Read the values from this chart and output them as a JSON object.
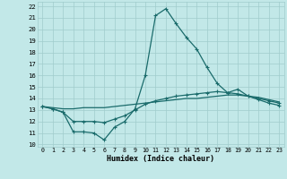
{
  "xlabel": "Humidex (Indice chaleur)",
  "bg_color": "#c2e8e8",
  "grid_color": "#a0cccc",
  "line_color": "#1a6b6b",
  "x": [
    0,
    1,
    2,
    3,
    4,
    5,
    6,
    7,
    8,
    9,
    10,
    11,
    12,
    13,
    14,
    15,
    16,
    17,
    18,
    19,
    20,
    21,
    22,
    23
  ],
  "line1": [
    13.3,
    13.1,
    12.8,
    11.1,
    11.1,
    11.0,
    10.4,
    11.5,
    12.0,
    13.1,
    16.0,
    21.2,
    21.8,
    20.5,
    19.3,
    18.3,
    16.7,
    15.3,
    14.5,
    14.8,
    14.2,
    14.0,
    13.8,
    13.6
  ],
  "line2": [
    13.3,
    13.2,
    13.1,
    13.1,
    13.2,
    13.2,
    13.2,
    13.3,
    13.4,
    13.5,
    13.6,
    13.7,
    13.8,
    13.9,
    14.0,
    14.0,
    14.1,
    14.2,
    14.3,
    14.3,
    14.2,
    14.1,
    13.9,
    13.7
  ],
  "line3": [
    13.3,
    13.1,
    12.8,
    12.0,
    12.0,
    12.0,
    11.9,
    12.2,
    12.5,
    13.0,
    13.5,
    13.8,
    14.0,
    14.2,
    14.3,
    14.4,
    14.5,
    14.6,
    14.5,
    14.4,
    14.2,
    13.9,
    13.6,
    13.4
  ],
  "ylim": [
    9.8,
    22.4
  ],
  "xlim": [
    -0.5,
    23.5
  ],
  "yticks": [
    10,
    11,
    12,
    13,
    14,
    15,
    16,
    17,
    18,
    19,
    20,
    21,
    22
  ],
  "xticks": [
    0,
    1,
    2,
    3,
    4,
    5,
    6,
    7,
    8,
    9,
    10,
    11,
    12,
    13,
    14,
    15,
    16,
    17,
    18,
    19,
    20,
    21,
    22,
    23
  ]
}
